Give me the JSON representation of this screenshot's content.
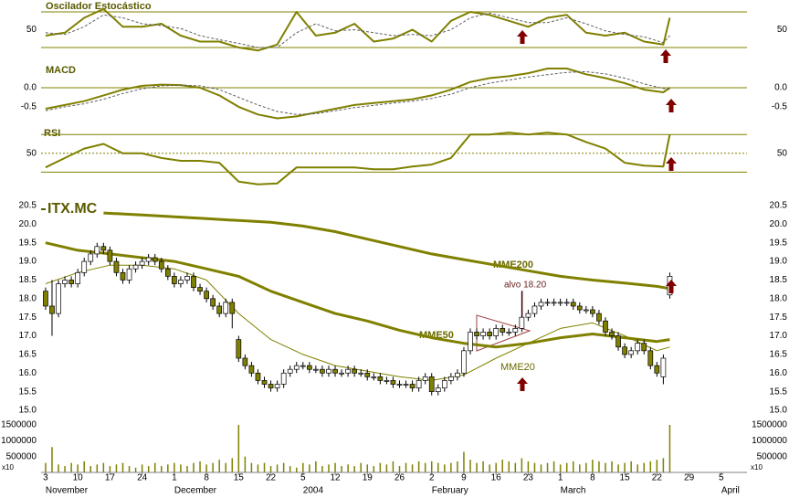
{
  "chart_data": [
    {
      "type": "line",
      "title": "Oscilador Estocástico",
      "xlim": [
        -0.7,
        109
      ],
      "ylim": [
        0,
        100
      ],
      "yticks": [
        50
      ],
      "hlines": [
        20,
        80
      ],
      "x": [
        0,
        3,
        6,
        9,
        12,
        15,
        18,
        21,
        24,
        27,
        30,
        33,
        36,
        39,
        42,
        45,
        48,
        51,
        54,
        57,
        60,
        63,
        66,
        69,
        72,
        75,
        78,
        81,
        84,
        87,
        90,
        93,
        96,
        97
      ],
      "series": [
        {
          "color": "#808000",
          "width": 2,
          "values": [
            40,
            45,
            70,
            85,
            55,
            55,
            60,
            40,
            30,
            30,
            20,
            15,
            25,
            80,
            40,
            45,
            60,
            30,
            35,
            50,
            30,
            65,
            80,
            75,
            65,
            55,
            70,
            75,
            45,
            40,
            45,
            30,
            25,
            70
          ]
        },
        {
          "color": "#606060",
          "width": 1,
          "dash": true,
          "values": [
            45,
            42,
            55,
            75,
            70,
            60,
            57,
            52,
            40,
            33,
            27,
            20,
            20,
            45,
            60,
            48,
            50,
            45,
            40,
            42,
            40,
            50,
            70,
            78,
            70,
            62,
            62,
            70,
            60,
            48,
            42,
            38,
            28,
            40
          ]
        }
      ]
    },
    {
      "type": "line",
      "title": "MACD",
      "xlim": [
        -0.7,
        109
      ],
      "ylim": [
        -1.05,
        0.62
      ],
      "yticks": [
        {
          "value": 0,
          "label": "0.0"
        },
        -0.5
      ],
      "hlines": [
        0
      ],
      "x": [
        0,
        3,
        6,
        9,
        12,
        15,
        18,
        21,
        24,
        27,
        30,
        33,
        36,
        39,
        42,
        45,
        48,
        51,
        54,
        57,
        60,
        63,
        66,
        69,
        72,
        75,
        78,
        81,
        84,
        87,
        90,
        93,
        96,
        97
      ],
      "series": [
        {
          "color": "#808000",
          "width": 2,
          "values": [
            -0.55,
            -0.45,
            -0.35,
            -0.2,
            -0.05,
            0.05,
            0.08,
            0.07,
            0.0,
            -0.2,
            -0.5,
            -0.7,
            -0.8,
            -0.75,
            -0.65,
            -0.55,
            -0.45,
            -0.4,
            -0.35,
            -0.3,
            -0.2,
            -0.05,
            0.15,
            0.25,
            0.3,
            0.38,
            0.5,
            0.5,
            0.35,
            0.25,
            0.12,
            -0.05,
            -0.12,
            0.0
          ]
        },
        {
          "color": "#606060",
          "width": 1,
          "dash": true,
          "values": [
            -0.6,
            -0.5,
            -0.42,
            -0.3,
            -0.15,
            -0.03,
            0.05,
            0.07,
            0.05,
            -0.05,
            -0.25,
            -0.45,
            -0.62,
            -0.7,
            -0.68,
            -0.6,
            -0.52,
            -0.46,
            -0.4,
            -0.35,
            -0.28,
            -0.17,
            0.0,
            0.12,
            0.2,
            0.28,
            0.34,
            0.4,
            0.42,
            0.36,
            0.25,
            0.1,
            -0.02,
            -0.04
          ]
        }
      ]
    },
    {
      "type": "line",
      "title": "RSI",
      "xlim": [
        -0.7,
        109
      ],
      "ylim": [
        9,
        77
      ],
      "yticks": [
        50
      ],
      "hlines": [
        30,
        70
      ],
      "dotted_hlines": [
        50
      ],
      "x": [
        0,
        3,
        6,
        9,
        12,
        15,
        18,
        21,
        24,
        27,
        30,
        33,
        36,
        39,
        42,
        45,
        48,
        51,
        54,
        57,
        60,
        63,
        66,
        69,
        72,
        75,
        78,
        81,
        84,
        87,
        90,
        93,
        96,
        97
      ],
      "series": [
        {
          "color": "#808000",
          "width": 2,
          "values": [
            35,
            45,
            55,
            60,
            50,
            50,
            45,
            42,
            42,
            40,
            20,
            17,
            18,
            35,
            35,
            35,
            35,
            33,
            33,
            36,
            38,
            45,
            70,
            70,
            72,
            70,
            72,
            70,
            62,
            55,
            40,
            37,
            36,
            70
          ]
        }
      ]
    },
    {
      "type": "candlestick",
      "title": "ITX.MC",
      "xlim": [
        -0.7,
        109
      ],
      "ylim": [
        15,
        20.5
      ],
      "yticks": [
        {
          "value": 20.5,
          "label": "20.5"
        },
        {
          "value": 20,
          "label": "20.0"
        },
        19.5,
        {
          "value": 19,
          "label": "19.0"
        },
        18.5,
        {
          "value": 18,
          "label": "18.0"
        },
        17.5,
        {
          "value": 17,
          "label": "17.0"
        },
        16.5,
        {
          "value": 16,
          "label": "16.0"
        },
        15.5,
        {
          "value": 15,
          "label": "15.0"
        }
      ],
      "up_color": "#ffffff",
      "down_color": "#808000",
      "x": [
        0,
        1,
        2,
        3,
        4,
        5,
        6,
        7,
        8,
        9,
        10,
        11,
        12,
        13,
        14,
        15,
        16,
        17,
        18,
        19,
        20,
        21,
        22,
        23,
        24,
        25,
        26,
        27,
        28,
        29,
        30,
        31,
        32,
        33,
        34,
        35,
        36,
        37,
        38,
        39,
        40,
        41,
        42,
        43,
        44,
        45,
        46,
        47,
        48,
        49,
        50,
        51,
        52,
        53,
        54,
        55,
        56,
        57,
        58,
        59,
        60,
        61,
        62,
        63,
        64,
        65,
        66,
        67,
        68,
        69,
        70,
        71,
        72,
        73,
        74,
        75,
        76,
        77,
        78,
        79,
        80,
        81,
        82,
        83,
        84,
        85,
        86,
        87,
        88,
        89,
        90,
        91,
        92,
        93,
        94,
        95,
        96,
        97
      ],
      "open": [
        18.2,
        17.8,
        17.6,
        18.4,
        18.5,
        18.4,
        18.7,
        19.0,
        19.2,
        19.4,
        19.3,
        19.0,
        18.7,
        18.5,
        18.8,
        18.9,
        19.0,
        19.1,
        19.0,
        18.8,
        18.6,
        18.4,
        18.5,
        18.6,
        18.3,
        18.2,
        18.0,
        17.8,
        17.6,
        17.9,
        16.9,
        16.4,
        16.2,
        16.0,
        15.8,
        15.7,
        15.6,
        15.7,
        16.0,
        16.1,
        16.2,
        16.2,
        16.1,
        16.1,
        16.0,
        16.1,
        16.0,
        16.0,
        16.1,
        16.0,
        16.0,
        15.9,
        15.9,
        15.8,
        15.8,
        15.7,
        15.7,
        15.7,
        15.6,
        15.8,
        15.9,
        15.5,
        15.6,
        15.8,
        15.9,
        16.0,
        16.6,
        17.1,
        17.0,
        17.1,
        17.0,
        17.2,
        17.1,
        17.1,
        17.2,
        17.5,
        17.6,
        17.8,
        17.9,
        17.9,
        17.9,
        17.9,
        17.9,
        17.8,
        17.7,
        17.7,
        17.6,
        17.4,
        17.1,
        17.0,
        16.7,
        16.5,
        16.6,
        16.8,
        16.6,
        16.2,
        15.9,
        18.1
      ],
      "high": [
        18.3,
        18.5,
        18.5,
        18.6,
        18.6,
        18.8,
        19.1,
        19.3,
        19.5,
        19.5,
        19.4,
        19.1,
        18.8,
        18.9,
        19.0,
        19.1,
        19.2,
        19.2,
        19.1,
        18.9,
        18.7,
        18.6,
        18.7,
        18.7,
        18.4,
        18.3,
        18.1,
        17.9,
        18.0,
        18.0,
        17.0,
        16.5,
        16.3,
        16.1,
        15.9,
        15.8,
        15.8,
        16.1,
        16.2,
        16.3,
        16.3,
        16.3,
        16.2,
        16.2,
        16.2,
        16.2,
        16.1,
        16.2,
        16.2,
        16.1,
        16.1,
        16.0,
        16.0,
        15.9,
        15.9,
        15.8,
        15.8,
        15.8,
        15.9,
        16.0,
        16.0,
        15.7,
        15.9,
        16.0,
        16.1,
        16.7,
        17.2,
        17.2,
        17.2,
        17.2,
        17.3,
        17.3,
        17.2,
        17.3,
        18.2,
        17.7,
        17.9,
        18.0,
        18.0,
        18.0,
        18.0,
        18.0,
        18.0,
        17.9,
        17.8,
        17.8,
        17.7,
        17.5,
        17.2,
        17.1,
        16.8,
        16.7,
        16.9,
        16.9,
        16.7,
        16.3,
        16.5,
        18.7
      ],
      "low": [
        17.7,
        17.0,
        17.5,
        18.3,
        18.3,
        18.3,
        18.6,
        18.9,
        19.1,
        19.2,
        18.9,
        18.6,
        18.4,
        18.4,
        18.7,
        18.8,
        18.9,
        18.9,
        18.7,
        18.5,
        18.3,
        18.3,
        18.4,
        18.2,
        18.1,
        17.9,
        17.7,
        17.5,
        17.5,
        17.2,
        16.3,
        16.1,
        15.9,
        15.7,
        15.6,
        15.5,
        15.5,
        15.6,
        15.9,
        16.0,
        16.1,
        16.0,
        16.0,
        15.9,
        15.9,
        15.9,
        15.9,
        15.9,
        15.9,
        15.9,
        15.8,
        15.8,
        15.7,
        15.7,
        15.6,
        15.6,
        15.6,
        15.5,
        15.5,
        15.7,
        15.4,
        15.4,
        15.5,
        15.7,
        15.8,
        15.9,
        16.5,
        16.9,
        16.9,
        16.9,
        16.9,
        17.0,
        17.0,
        17.0,
        17.1,
        17.4,
        17.5,
        17.7,
        17.8,
        17.8,
        17.8,
        17.8,
        17.7,
        17.6,
        17.6,
        17.5,
        17.3,
        17.0,
        16.9,
        16.6,
        16.4,
        16.4,
        16.5,
        16.5,
        16.1,
        15.9,
        15.7,
        18.0
      ],
      "close": [
        17.8,
        17.6,
        18.4,
        18.5,
        18.4,
        18.7,
        19.0,
        19.2,
        19.4,
        19.3,
        19.0,
        18.7,
        18.5,
        18.8,
        18.9,
        19.0,
        19.1,
        19.0,
        18.8,
        18.6,
        18.4,
        18.5,
        18.6,
        18.3,
        18.2,
        18.0,
        17.8,
        17.6,
        17.9,
        17.6,
        16.4,
        16.2,
        16.0,
        15.8,
        15.7,
        15.6,
        15.7,
        16.0,
        16.1,
        16.2,
        16.2,
        16.1,
        16.1,
        16.0,
        16.1,
        16.0,
        16.0,
        16.1,
        16.0,
        16.0,
        15.9,
        15.9,
        15.8,
        15.8,
        15.7,
        15.7,
        15.7,
        15.6,
        15.8,
        15.9,
        15.5,
        15.6,
        15.8,
        15.9,
        16.0,
        16.6,
        17.1,
        17.0,
        17.1,
        17.0,
        17.2,
        17.1,
        17.1,
        17.2,
        17.5,
        17.6,
        17.8,
        17.9,
        17.9,
        17.9,
        17.9,
        17.9,
        17.8,
        17.7,
        17.7,
        17.6,
        17.4,
        17.1,
        17.0,
        16.7,
        16.5,
        16.6,
        16.8,
        16.6,
        16.2,
        16.0,
        16.4,
        18.6
      ],
      "series": [
        {
          "name": "MME200",
          "color": "#808000",
          "width": 3,
          "x": [
            9,
            15,
            20,
            25,
            30,
            35,
            40,
            45,
            50,
            55,
            60,
            65,
            70,
            75,
            80,
            85,
            90,
            95,
            97
          ],
          "values": [
            20.3,
            20.25,
            20.2,
            20.15,
            20.1,
            20.05,
            19.95,
            19.8,
            19.6,
            19.4,
            19.2,
            19.05,
            18.9,
            18.75,
            18.6,
            18.5,
            18.42,
            18.33,
            18.27
          ]
        },
        {
          "name": "MME50",
          "color": "#808000",
          "width": 3,
          "x": [
            0,
            5,
            10,
            15,
            20,
            25,
            30,
            35,
            40,
            45,
            50,
            55,
            60,
            65,
            70,
            75,
            80,
            85,
            90,
            95,
            97
          ],
          "values": [
            19.5,
            19.3,
            19.2,
            19.1,
            19.0,
            18.8,
            18.6,
            18.2,
            17.9,
            17.6,
            17.4,
            17.15,
            16.95,
            16.8,
            16.7,
            16.8,
            16.95,
            17.05,
            16.95,
            16.85,
            16.9
          ]
        },
        {
          "name": "MME20",
          "color": "#808000",
          "width": 1,
          "x": [
            0,
            5,
            10,
            15,
            20,
            25,
            30,
            35,
            40,
            45,
            50,
            55,
            60,
            65,
            70,
            75,
            80,
            85,
            90,
            95,
            97
          ],
          "values": [
            18.4,
            18.7,
            18.9,
            18.9,
            18.8,
            18.5,
            17.6,
            16.9,
            16.5,
            16.2,
            16.05,
            15.9,
            15.8,
            15.95,
            16.4,
            16.8,
            17.2,
            17.35,
            17.0,
            16.6,
            16.7
          ]
        }
      ],
      "annotations": [
        "alvo 18.20"
      ],
      "volume_unit": "x10",
      "volume_color": "#808000",
      "volume": [
        300000,
        800000,
        250000,
        200000,
        300000,
        250000,
        350000,
        200000,
        250000,
        300000,
        200000,
        250000,
        300000,
        200000,
        150000,
        250000,
        200000,
        300000,
        200000,
        250000,
        300000,
        250000,
        200000,
        300000,
        350000,
        250000,
        300000,
        400000,
        300000,
        450000,
        1500000,
        500000,
        300000,
        250000,
        300000,
        200000,
        250000,
        300000,
        200000,
        150000,
        300000,
        250000,
        350000,
        200000,
        250000,
        300000,
        200000,
        250000,
        200000,
        300000,
        250000,
        200000,
        300000,
        250000,
        350000,
        200000,
        300000,
        250000,
        350000,
        300000,
        350000,
        300000,
        250000,
        300000,
        350000,
        650000,
        400000,
        300000,
        350000,
        250000,
        300000,
        400000,
        350000,
        300000,
        450000,
        350000,
        300000,
        250000,
        300000,
        350000,
        250000,
        300000,
        350000,
        250000,
        300000,
        400000,
        350000,
        300000,
        350000,
        250000,
        300000,
        350000,
        250000,
        300000,
        350000,
        400000,
        450000,
        1500000
      ],
      "vlim": [
        0,
        1500000
      ],
      "vticks": [
        1500000,
        1000000,
        500000
      ],
      "xticks": [
        {
          "value": 0,
          "label": "3"
        },
        {
          "value": 5,
          "label": "10"
        },
        {
          "value": 10,
          "label": "17"
        },
        {
          "value": 15,
          "label": "24"
        },
        {
          "value": 20,
          "label": "1"
        },
        {
          "value": 25,
          "label": "8"
        },
        {
          "value": 30,
          "label": "15"
        },
        {
          "value": 35,
          "label": "22"
        },
        {
          "value": 40,
          "label": "5"
        },
        {
          "value": 45,
          "label": "12"
        },
        {
          "value": 50,
          "label": "19"
        },
        {
          "value": 55,
          "label": "26"
        },
        {
          "value": 60,
          "label": "2"
        },
        {
          "value": 65,
          "label": "9"
        },
        {
          "value": 70,
          "label": "16"
        },
        {
          "value": 75,
          "label": "23"
        },
        {
          "value": 80,
          "label": "1"
        },
        {
          "value": 85,
          "label": "8"
        },
        {
          "value": 90,
          "label": "15"
        },
        {
          "value": 95,
          "label": "22"
        },
        {
          "value": 100,
          "label": "29"
        },
        {
          "value": 105,
          "label": "5"
        }
      ],
      "month_labels": [
        {
          "value": 0,
          "label": "November"
        },
        {
          "value": 20,
          "label": "December"
        },
        {
          "value": 40,
          "label": "2004"
        },
        {
          "value": 60,
          "label": "February"
        },
        {
          "value": 80,
          "label": "March"
        },
        {
          "value": 105,
          "label": "April"
        }
      ]
    }
  ]
}
